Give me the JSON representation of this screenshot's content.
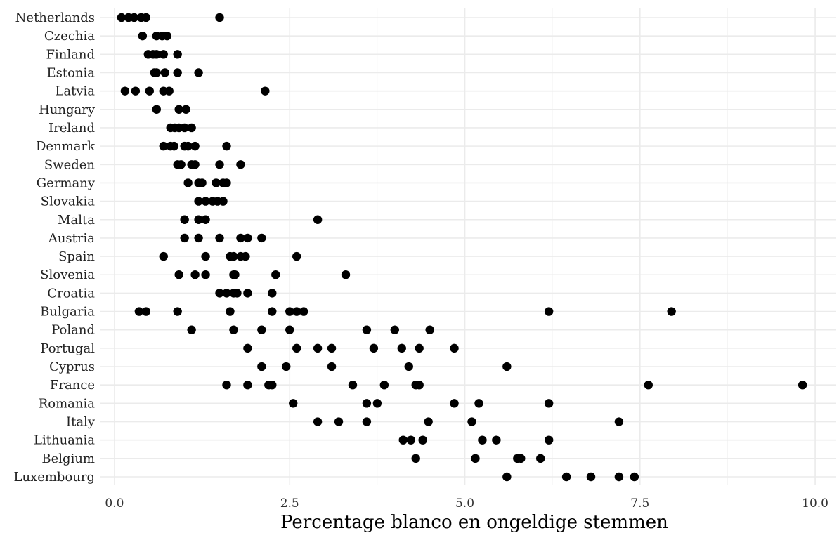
{
  "chart_data": {
    "type": "scatter",
    "xlabel": "Percentage blanco en ongeldige stemmen",
    "ylabel": "",
    "xlim": [
      -0.2,
      10.3
    ],
    "x_ticks": [
      0.0,
      2.5,
      5.0,
      7.5,
      10.0
    ],
    "x_tick_labels": [
      "0.0",
      "2.5",
      "5.0",
      "7.5",
      "10.0"
    ],
    "grid": true,
    "legend": "none",
    "point_color": "#000000",
    "categories": [
      "Netherlands",
      "Czechia",
      "Finland",
      "Estonia",
      "Latvia",
      "Hungary",
      "Ireland",
      "Denmark",
      "Sweden",
      "Germany",
      "Slovakia",
      "Malta",
      "Austria",
      "Spain",
      "Slovenia",
      "Croatia",
      "Bulgaria",
      "Poland",
      "Portugal",
      "Cyprus",
      "France",
      "Romania",
      "Italy",
      "Lithuania",
      "Belgium",
      "Luxembourg"
    ],
    "series": [
      {
        "category": "Netherlands",
        "values": [
          0.1,
          0.2,
          0.28,
          0.38,
          0.45,
          1.5
        ]
      },
      {
        "category": "Czechia",
        "values": [
          0.4,
          0.6,
          0.68,
          0.75
        ]
      },
      {
        "category": "Finland",
        "values": [
          0.48,
          0.55,
          0.6,
          0.7,
          0.9
        ]
      },
      {
        "category": "Estonia",
        "values": [
          0.57,
          0.6,
          0.72,
          0.9,
          1.2
        ]
      },
      {
        "category": "Latvia",
        "values": [
          0.15,
          0.3,
          0.5,
          0.7,
          0.78,
          2.15
        ]
      },
      {
        "category": "Hungary",
        "values": [
          0.6,
          0.92,
          1.02
        ]
      },
      {
        "category": "Ireland",
        "values": [
          0.8,
          0.86,
          0.92,
          1.0,
          1.1
        ]
      },
      {
        "category": "Denmark",
        "values": [
          0.7,
          0.8,
          0.85,
          1.0,
          1.05,
          1.15,
          1.6
        ]
      },
      {
        "category": "Sweden",
        "values": [
          0.9,
          0.95,
          1.1,
          1.15,
          1.5,
          1.8
        ]
      },
      {
        "category": "Germany",
        "values": [
          1.05,
          1.2,
          1.25,
          1.45,
          1.55,
          1.6
        ]
      },
      {
        "category": "Slovakia",
        "values": [
          1.2,
          1.3,
          1.4,
          1.47,
          1.55
        ]
      },
      {
        "category": "Malta",
        "values": [
          1.0,
          1.2,
          1.3,
          2.9
        ]
      },
      {
        "category": "Austria",
        "values": [
          1.0,
          1.2,
          1.5,
          1.8,
          1.9,
          2.1
        ]
      },
      {
        "category": "Spain",
        "values": [
          0.7,
          1.3,
          1.65,
          1.7,
          1.8,
          1.87,
          2.6
        ]
      },
      {
        "category": "Slovenia",
        "values": [
          0.92,
          1.15,
          1.3,
          1.7,
          1.72,
          2.3,
          3.3
        ]
      },
      {
        "category": "Croatia",
        "values": [
          1.5,
          1.6,
          1.7,
          1.75,
          1.9,
          2.25
        ]
      },
      {
        "category": "Bulgaria",
        "values": [
          0.35,
          0.45,
          0.9,
          1.65,
          2.25,
          2.5,
          2.6,
          2.7,
          6.2,
          7.95
        ]
      },
      {
        "category": "Poland",
        "values": [
          1.1,
          1.7,
          2.1,
          2.5,
          3.6,
          4.0,
          4.5
        ]
      },
      {
        "category": "Portugal",
        "values": [
          1.9,
          2.6,
          2.9,
          3.1,
          3.7,
          4.1,
          4.35,
          4.85
        ]
      },
      {
        "category": "Cyprus",
        "values": [
          2.1,
          2.45,
          3.1,
          4.2,
          5.6
        ]
      },
      {
        "category": "France",
        "values": [
          1.6,
          1.9,
          2.2,
          2.25,
          3.4,
          3.85,
          4.3,
          4.35,
          7.62,
          9.82
        ]
      },
      {
        "category": "Romania",
        "values": [
          2.55,
          3.6,
          3.75,
          4.85,
          5.2,
          6.2
        ]
      },
      {
        "category": "Italy",
        "values": [
          2.9,
          3.2,
          3.6,
          4.48,
          5.1,
          7.2
        ]
      },
      {
        "category": "Lithuania",
        "values": [
          4.12,
          4.23,
          4.4,
          5.25,
          5.45,
          6.2
        ]
      },
      {
        "category": "Belgium",
        "values": [
          4.3,
          5.15,
          5.75,
          5.8,
          6.08
        ]
      },
      {
        "category": "Luxembourg",
        "values": [
          5.6,
          6.45,
          6.8,
          7.2,
          7.42
        ]
      }
    ]
  }
}
